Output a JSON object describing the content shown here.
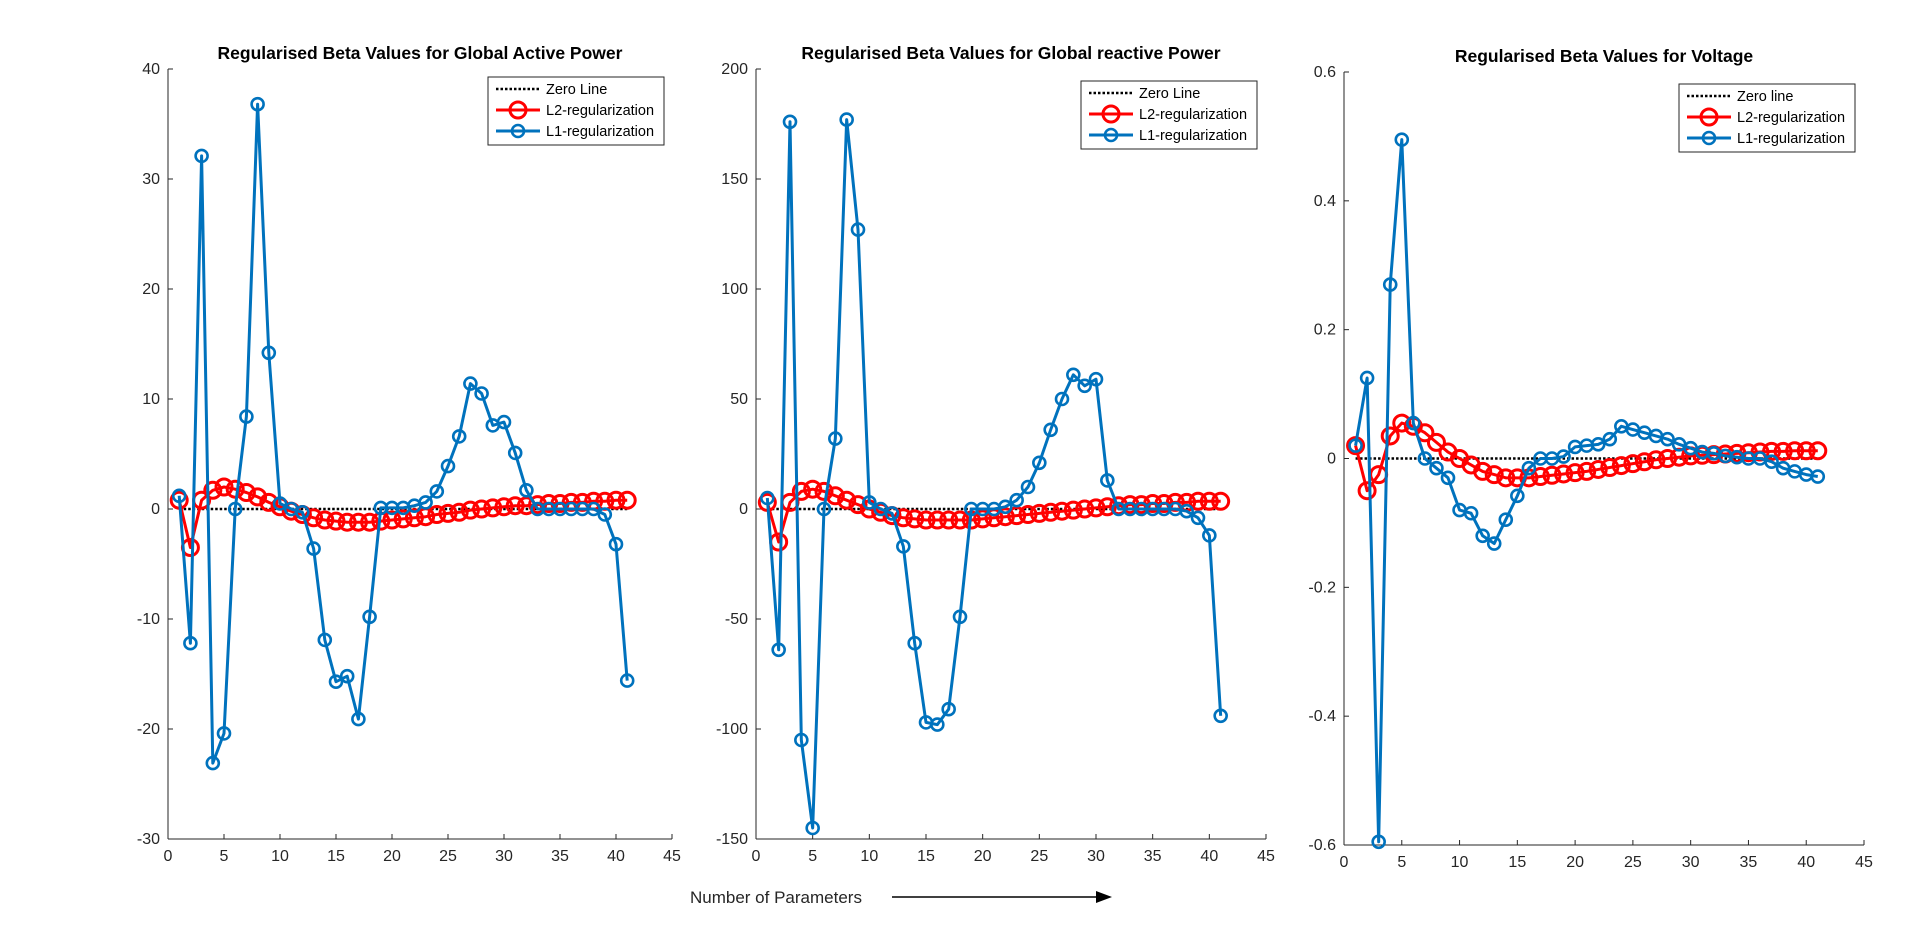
{
  "figure": {
    "shared_xlabel": "Number of Parameters"
  },
  "chart_data": [
    {
      "type": "line",
      "title": "Regularised Beta Values for Global Active Power",
      "xlabel": "",
      "ylabel": "",
      "xlim": [
        0,
        45
      ],
      "ylim": [
        -30,
        40
      ],
      "xticks": [
        0,
        5,
        10,
        15,
        20,
        25,
        30,
        35,
        40,
        45
      ],
      "yticks": [
        -30,
        -20,
        -10,
        0,
        10,
        20,
        30,
        40
      ],
      "grid": false,
      "legend_position": "top-right",
      "x": [
        1,
        2,
        3,
        4,
        5,
        6,
        7,
        8,
        9,
        10,
        11,
        12,
        13,
        14,
        15,
        16,
        17,
        18,
        19,
        20,
        21,
        22,
        23,
        24,
        25,
        26,
        27,
        28,
        29,
        30,
        31,
        32,
        33,
        34,
        35,
        36,
        37,
        38,
        39,
        40,
        41
      ],
      "series": [
        {
          "name": "Zero Line",
          "style": "dotted",
          "color": "#000000",
          "marker": "none",
          "values": [
            0,
            0,
            0,
            0,
            0,
            0,
            0,
            0,
            0,
            0,
            0,
            0,
            0,
            0,
            0,
            0,
            0,
            0,
            0,
            0,
            0,
            0,
            0,
            0,
            0,
            0,
            0,
            0,
            0,
            0,
            0,
            0,
            0,
            0,
            0,
            0,
            0,
            0,
            0,
            0,
            0
          ]
        },
        {
          "name": "L2-regularization",
          "style": "solid",
          "color": "#ff0000",
          "marker": "circle",
          "marker_size": 8,
          "values": [
            0.8,
            -3.5,
            0.8,
            1.7,
            2.0,
            1.8,
            1.5,
            1.1,
            0.6,
            0.2,
            -0.2,
            -0.5,
            -0.8,
            -1.0,
            -1.1,
            -1.2,
            -1.2,
            -1.2,
            -1.1,
            -1.0,
            -0.9,
            -0.8,
            -0.7,
            -0.5,
            -0.4,
            -0.3,
            -0.1,
            0.0,
            0.1,
            0.2,
            0.3,
            0.3,
            0.4,
            0.5,
            0.5,
            0.6,
            0.6,
            0.7,
            0.7,
            0.8,
            0.8
          ]
        },
        {
          "name": "L1-regularization",
          "style": "solid",
          "color": "#0072bd",
          "marker": "circle",
          "marker_size": 6,
          "values": [
            1.2,
            -12.2,
            32.1,
            -23.1,
            -20.4,
            0.0,
            8.4,
            36.8,
            14.2,
            0.5,
            0.0,
            -0.3,
            -3.6,
            -11.9,
            -15.7,
            -15.2,
            -19.1,
            -9.8,
            0.1,
            0.1,
            0.1,
            0.3,
            0.6,
            1.6,
            3.9,
            6.6,
            11.4,
            10.5,
            7.6,
            7.9,
            5.1,
            1.7,
            0.0,
            0.0,
            0.0,
            0.0,
            0.0,
            0.0,
            -0.5,
            -3.2,
            -15.6
          ]
        }
      ]
    },
    {
      "type": "line",
      "title": "Regularised Beta Values for Global reactive Power",
      "xlabel": "",
      "ylabel": "",
      "xlim": [
        0,
        45
      ],
      "ylim": [
        -150,
        200
      ],
      "xticks": [
        0,
        5,
        10,
        15,
        20,
        25,
        30,
        35,
        40,
        45
      ],
      "yticks": [
        -150,
        -100,
        -50,
        0,
        50,
        100,
        150,
        200
      ],
      "grid": false,
      "legend_position": "top-right",
      "x": [
        1,
        2,
        3,
        4,
        5,
        6,
        7,
        8,
        9,
        10,
        11,
        12,
        13,
        14,
        15,
        16,
        17,
        18,
        19,
        20,
        21,
        22,
        23,
        24,
        25,
        26,
        27,
        28,
        29,
        30,
        31,
        32,
        33,
        34,
        35,
        36,
        37,
        38,
        39,
        40,
        41
      ],
      "series": [
        {
          "name": "Zero Line",
          "style": "dotted",
          "color": "#000000",
          "marker": "none",
          "values": [
            0,
            0,
            0,
            0,
            0,
            0,
            0,
            0,
            0,
            0,
            0,
            0,
            0,
            0,
            0,
            0,
            0,
            0,
            0,
            0,
            0,
            0,
            0,
            0,
            0,
            0,
            0,
            0,
            0,
            0,
            0,
            0,
            0,
            0,
            0,
            0,
            0,
            0,
            0,
            0,
            0
          ]
        },
        {
          "name": "L2-regularization",
          "style": "solid",
          "color": "#ff0000",
          "marker": "circle",
          "marker_size": 8,
          "values": [
            3,
            -15,
            3,
            8,
            9,
            8,
            6,
            4,
            2,
            0,
            -1.5,
            -3,
            -4,
            -4.5,
            -5,
            -5,
            -5,
            -5,
            -5,
            -4.5,
            -4,
            -3.5,
            -3,
            -2.5,
            -2,
            -1.5,
            -1,
            -0.5,
            0,
            0.5,
            1,
            1.5,
            2,
            2,
            2.5,
            2.5,
            3,
            3,
            3.5,
            3.5,
            3.5
          ]
        },
        {
          "name": "L1-regularization",
          "style": "solid",
          "color": "#0072bd",
          "marker": "circle",
          "marker_size": 6,
          "values": [
            5,
            -64,
            176,
            -105,
            -145,
            0,
            32,
            177,
            127,
            3,
            0,
            -2,
            -17,
            -61,
            -97,
            -98,
            -91,
            -49,
            0,
            0,
            0,
            1,
            4,
            10,
            21,
            36,
            50,
            61,
            56,
            59,
            13,
            0,
            0,
            0,
            0,
            0,
            0,
            -1,
            -4,
            -12,
            -94
          ]
        }
      ]
    },
    {
      "type": "line",
      "title": "Regularised Beta Values for Voltage",
      "xlabel": "",
      "ylabel": "",
      "xlim": [
        0,
        45
      ],
      "ylim": [
        -0.6,
        0.6
      ],
      "xticks": [
        0,
        5,
        10,
        15,
        20,
        25,
        30,
        35,
        40,
        45
      ],
      "yticks": [
        -0.6,
        -0.4,
        -0.2,
        0,
        0.2,
        0.4,
        0.6
      ],
      "grid": false,
      "legend_position": "top-right",
      "x": [
        1,
        2,
        3,
        4,
        5,
        6,
        7,
        8,
        9,
        10,
        11,
        12,
        13,
        14,
        15,
        16,
        17,
        18,
        19,
        20,
        21,
        22,
        23,
        24,
        25,
        26,
        27,
        28,
        29,
        30,
        31,
        32,
        33,
        34,
        35,
        36,
        37,
        38,
        39,
        40,
        41
      ],
      "series": [
        {
          "name": "Zero line",
          "style": "dotted",
          "color": "#000000",
          "marker": "none",
          "values": [
            0,
            0,
            0,
            0,
            0,
            0,
            0,
            0,
            0,
            0,
            0,
            0,
            0,
            0,
            0,
            0,
            0,
            0,
            0,
            0,
            0,
            0,
            0,
            0,
            0,
            0,
            0,
            0,
            0,
            0,
            0,
            0,
            0,
            0,
            0,
            0,
            0,
            0,
            0,
            0,
            0
          ]
        },
        {
          "name": "L2-regularization",
          "style": "solid",
          "color": "#ff0000",
          "marker": "circle",
          "marker_size": 8,
          "values": [
            0.02,
            -0.05,
            -0.025,
            0.035,
            0.055,
            0.05,
            0.04,
            0.025,
            0.01,
            0.0,
            -0.01,
            -0.02,
            -0.025,
            -0.03,
            -0.03,
            -0.03,
            -0.028,
            -0.026,
            -0.024,
            -0.022,
            -0.02,
            -0.017,
            -0.014,
            -0.011,
            -0.008,
            -0.005,
            -0.002,
            0.0,
            0.002,
            0.004,
            0.005,
            0.006,
            0.007,
            0.008,
            0.009,
            0.01,
            0.011,
            0.011,
            0.012,
            0.012,
            0.012
          ]
        },
        {
          "name": "L1-regularization",
          "style": "solid",
          "color": "#0072bd",
          "marker": "circle",
          "marker_size": 6,
          "values": [
            0.02,
            0.125,
            -0.595,
            0.27,
            0.495,
            0.055,
            0.0,
            -0.015,
            -0.03,
            -0.08,
            -0.085,
            -0.12,
            -0.132,
            -0.095,
            -0.058,
            -0.015,
            0.0,
            0.0,
            0.003,
            0.018,
            0.02,
            0.022,
            0.03,
            0.05,
            0.045,
            0.04,
            0.035,
            0.03,
            0.022,
            0.016,
            0.01,
            0.008,
            0.004,
            0.002,
            0.0,
            0.0,
            -0.005,
            -0.015,
            -0.02,
            -0.025,
            -0.028
          ]
        }
      ]
    }
  ]
}
